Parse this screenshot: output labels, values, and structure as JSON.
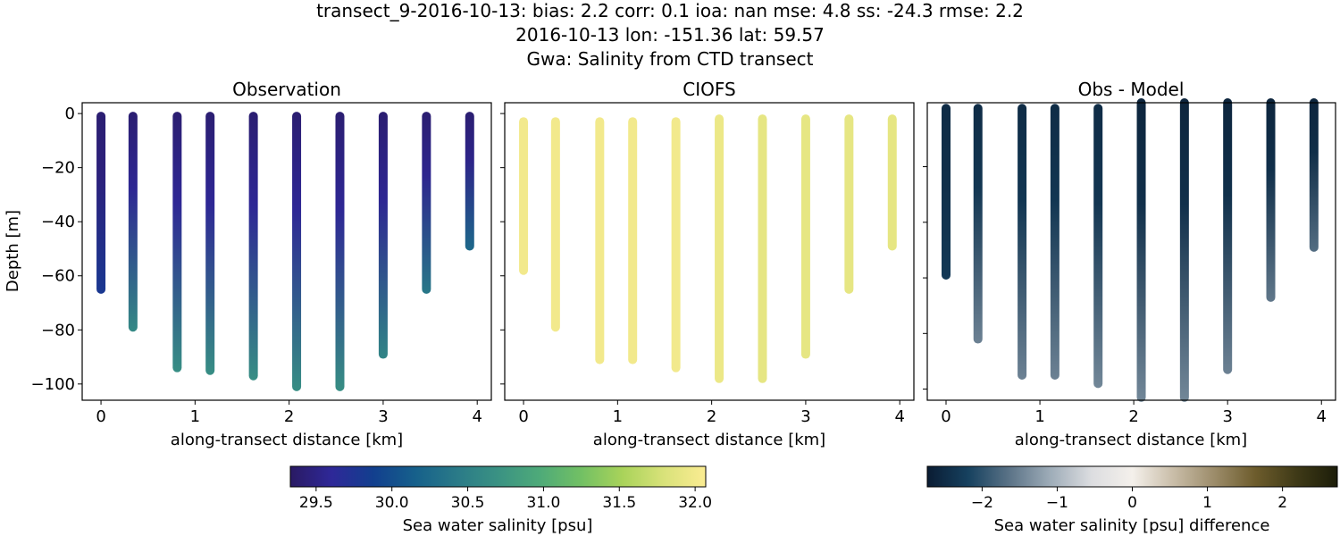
{
  "figure": {
    "title_lines": [
      "transect_9-2016-10-13: bias: 2.2  corr: 0.1  ioa: nan  mse: 4.8  ss: -24.3  rmse: 2.2",
      "2016-10-13 lon: -151.36 lat: 59.57",
      "Gwa: Salinity from CTD transect"
    ]
  },
  "chart_data": [
    {
      "type": "scatter",
      "title": "Observation",
      "xlabel": "along-transect distance [km]",
      "ylabel": "Depth [m]",
      "xlim": [
        -0.2,
        4.15
      ],
      "ylim": [
        -106,
        4
      ],
      "xticks": [
        0,
        1,
        2,
        3,
        4
      ],
      "yticks": [
        0,
        -20,
        -40,
        -60,
        -80,
        -100
      ],
      "ytick_labels": [
        "0",
        "−20",
        "−40",
        "−60",
        "−80",
        "−100"
      ],
      "grid": false,
      "colormap": "haline",
      "stations": [
        {
          "x": 0.0,
          "top": -1,
          "bottom": -65,
          "surface_salinity": 29.4,
          "bottom_salinity": 29.8
        },
        {
          "x": 0.34,
          "top": -1,
          "bottom": -79,
          "surface_salinity": 29.4,
          "bottom_salinity": 30.6
        },
        {
          "x": 0.81,
          "top": -1,
          "bottom": -94,
          "surface_salinity": 29.4,
          "bottom_salinity": 30.65
        },
        {
          "x": 1.16,
          "top": -1,
          "bottom": -95,
          "surface_salinity": 29.4,
          "bottom_salinity": 30.65
        },
        {
          "x": 1.62,
          "top": -1,
          "bottom": -97,
          "surface_salinity": 29.4,
          "bottom_salinity": 30.65
        },
        {
          "x": 2.08,
          "top": -1,
          "bottom": -101,
          "surface_salinity": 29.4,
          "bottom_salinity": 30.65
        },
        {
          "x": 2.54,
          "top": -1,
          "bottom": -101,
          "surface_salinity": 29.4,
          "bottom_salinity": 30.65
        },
        {
          "x": 3.0,
          "top": -1,
          "bottom": -89,
          "surface_salinity": 29.4,
          "bottom_salinity": 30.55
        },
        {
          "x": 3.46,
          "top": -1,
          "bottom": -65,
          "surface_salinity": 29.4,
          "bottom_salinity": 30.4
        },
        {
          "x": 3.92,
          "top": -1,
          "bottom": -49,
          "surface_salinity": 29.4,
          "bottom_salinity": 30.25
        }
      ]
    },
    {
      "type": "scatter",
      "title": "CIOFS",
      "xlabel": "along-transect distance [km]",
      "ylabel": "",
      "xlim": [
        -0.2,
        4.15
      ],
      "ylim": [
        -106,
        4
      ],
      "xticks": [
        0,
        1,
        2,
        3,
        4
      ],
      "yticks": [
        0,
        -20,
        -40,
        -60,
        -80,
        -100
      ],
      "ytick_labels": [],
      "grid": false,
      "colormap": "haline",
      "stations": [
        {
          "x": 0.0,
          "top": -3,
          "bottom": -58,
          "surface_salinity": 32.0,
          "bottom_salinity": 32.0
        },
        {
          "x": 0.34,
          "top": -3,
          "bottom": -79,
          "surface_salinity": 32.0,
          "bottom_salinity": 32.0
        },
        {
          "x": 0.81,
          "top": -3,
          "bottom": -91,
          "surface_salinity": 32.0,
          "bottom_salinity": 32.0
        },
        {
          "x": 1.16,
          "top": -3,
          "bottom": -91,
          "surface_salinity": 32.0,
          "bottom_salinity": 32.0
        },
        {
          "x": 1.62,
          "top": -3,
          "bottom": -94,
          "surface_salinity": 32.0,
          "bottom_salinity": 32.0
        },
        {
          "x": 2.08,
          "top": -2,
          "bottom": -98,
          "surface_salinity": 31.95,
          "bottom_salinity": 31.95
        },
        {
          "x": 2.54,
          "top": -2,
          "bottom": -98,
          "surface_salinity": 31.9,
          "bottom_salinity": 31.9
        },
        {
          "x": 3.0,
          "top": -2,
          "bottom": -89,
          "surface_salinity": 31.9,
          "bottom_salinity": 31.9
        },
        {
          "x": 3.46,
          "top": -2,
          "bottom": -65,
          "surface_salinity": 31.9,
          "bottom_salinity": 31.9
        },
        {
          "x": 3.92,
          "top": -2,
          "bottom": -49,
          "surface_salinity": 31.9,
          "bottom_salinity": 31.9
        }
      ]
    },
    {
      "type": "scatter",
      "title": "Obs - Model",
      "xlabel": "along-transect distance [km]",
      "ylabel": "",
      "xlim": [
        -0.2,
        4.15
      ],
      "ylim": [
        -104,
        3
      ],
      "xticks": [
        0,
        1,
        2,
        3,
        4
      ],
      "yticks": [
        -100,
        -80,
        -60,
        -40,
        -20
      ],
      "ytick_labels": [],
      "grid": false,
      "colormap": "diff",
      "stations": [
        {
          "x": 0.0,
          "top": 1,
          "bottom": -59,
          "surface_value": -2.5,
          "bottom_value": -2.3
        },
        {
          "x": 0.34,
          "top": 1,
          "bottom": -82,
          "surface_value": -2.5,
          "bottom_value": -1.5
        },
        {
          "x": 0.81,
          "top": 1,
          "bottom": -95,
          "surface_value": -2.5,
          "bottom_value": -1.5
        },
        {
          "x": 1.16,
          "top": 1,
          "bottom": -95,
          "surface_value": -2.5,
          "bottom_value": -1.5
        },
        {
          "x": 1.62,
          "top": 1,
          "bottom": -98,
          "surface_value": -2.5,
          "bottom_value": -1.45
        },
        {
          "x": 2.08,
          "top": 3,
          "bottom": -103,
          "surface_value": -2.6,
          "bottom_value": -1.45
        },
        {
          "x": 2.54,
          "top": 3,
          "bottom": -103,
          "surface_value": -2.6,
          "bottom_value": -1.45
        },
        {
          "x": 3.0,
          "top": 3,
          "bottom": -93,
          "surface_value": -2.6,
          "bottom_value": -1.5
        },
        {
          "x": 3.46,
          "top": 3,
          "bottom": -67,
          "surface_value": -2.6,
          "bottom_value": -1.6
        },
        {
          "x": 3.92,
          "top": 3,
          "bottom": -49,
          "surface_value": -2.6,
          "bottom_value": -1.7
        }
      ]
    }
  ],
  "colorbars": [
    {
      "label": "Sea water salinity [psu]",
      "range": [
        29.33,
        32.07
      ],
      "ticks": [
        29.5,
        30.0,
        30.5,
        31.0,
        31.5,
        32.0
      ],
      "tick_labels": [
        "29.5",
        "30.0",
        "30.5",
        "31.0",
        "31.5",
        "32.0"
      ],
      "colors": [
        "#2a1a63",
        "#2e2898",
        "#123f8e",
        "#16608b",
        "#2a7a88",
        "#3a9283",
        "#4eaa79",
        "#72c064",
        "#a9d35a",
        "#d9e27a",
        "#fbec92"
      ]
    },
    {
      "label": "Sea water salinity [psu] difference",
      "range": [
        -2.73,
        2.73
      ],
      "ticks": [
        -2,
        -1,
        0,
        1,
        2
      ],
      "tick_labels": [
        "−2",
        "−1",
        "0",
        "1",
        "2"
      ],
      "colors": [
        "#0a1c33",
        "#16415f",
        "#5b7387",
        "#9eacb8",
        "#dcdde0",
        "#f4f0eb",
        "#c9bda8",
        "#9c8c6a",
        "#6d5c2c",
        "#3f3a17",
        "#1c1d09"
      ]
    }
  ]
}
